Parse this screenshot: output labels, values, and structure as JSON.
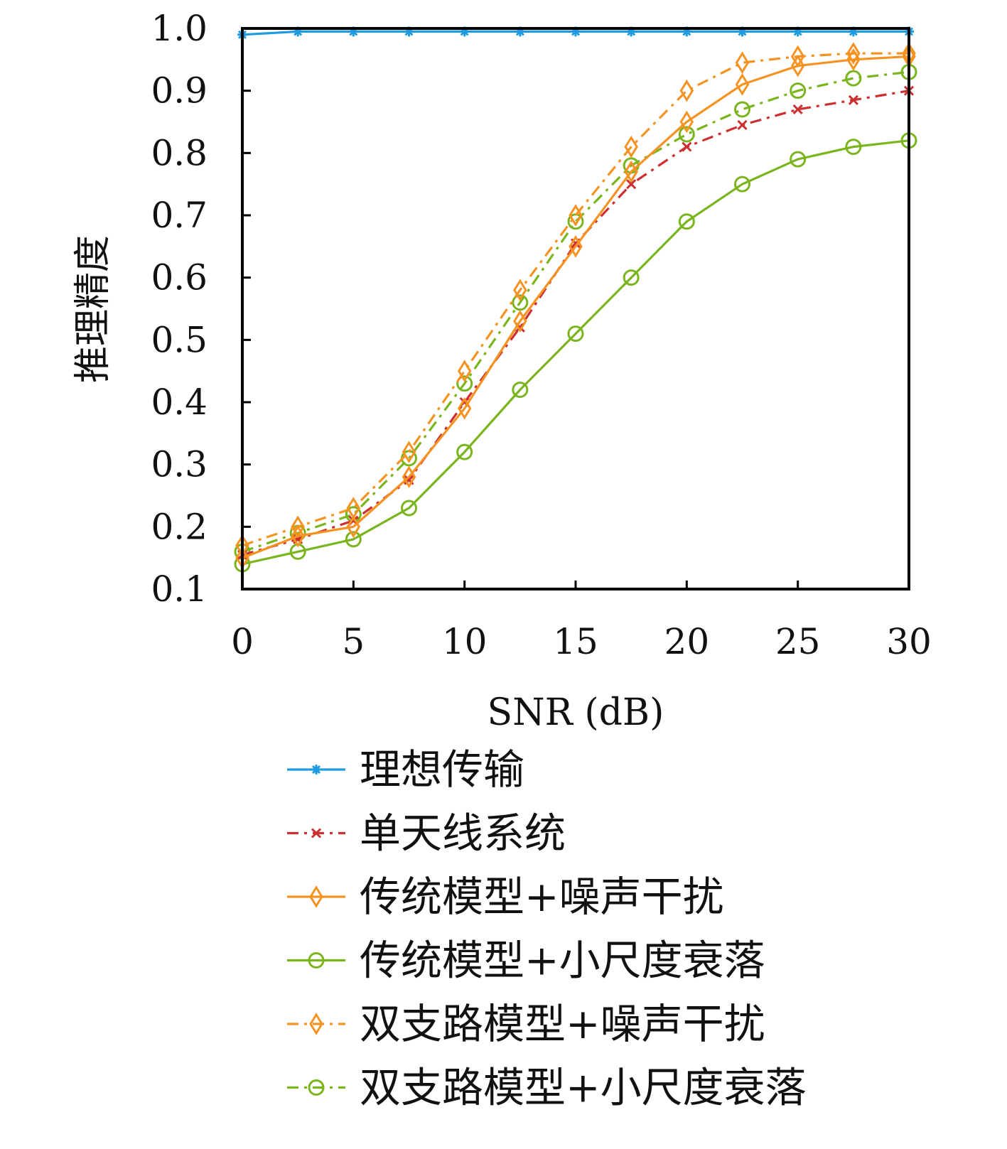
{
  "chart_data": {
    "type": "line",
    "title": "",
    "xlabel": "SNR (dB)",
    "ylabel": "推理精度",
    "xlim": [
      0,
      30
    ],
    "ylim": [
      0.1,
      1.0
    ],
    "xticks": [
      0,
      5,
      10,
      15,
      20,
      25,
      30
    ],
    "xtick_labels": [
      "0",
      "5",
      "10",
      "15",
      "20",
      "25",
      "30"
    ],
    "yticks": [
      0.1,
      0.2,
      0.3,
      0.4,
      0.5,
      0.6,
      0.7,
      0.8,
      0.9,
      1.0
    ],
    "ytick_labels": [
      "0.1",
      "0.2",
      "0.3",
      "0.4",
      "0.5",
      "0.6",
      "0.7",
      "0.8",
      "0.9",
      "1.0"
    ],
    "grid": false,
    "legend_position": "below",
    "x": [
      0,
      2.5,
      5,
      7.5,
      10,
      12.5,
      15,
      17.5,
      20,
      22.5,
      25,
      27.5,
      30
    ],
    "series": [
      {
        "name": "理想传输",
        "color": "#1f9be0",
        "line": "solid",
        "marker": "asterisk",
        "values": [
          0.99,
          0.995,
          0.995,
          0.995,
          0.995,
          0.995,
          0.995,
          0.995,
          0.995,
          0.995,
          0.995,
          0.995,
          0.995
        ]
      },
      {
        "name": "单天线系统",
        "color": "#cc3030",
        "line": "dashdot",
        "marker": "x",
        "values": [
          0.155,
          0.18,
          0.21,
          0.275,
          0.4,
          0.52,
          0.655,
          0.75,
          0.81,
          0.845,
          0.87,
          0.885,
          0.9
        ]
      },
      {
        "name": "传统模型+噪声干扰",
        "color": "#f59322",
        "line": "solid",
        "marker": "diamond",
        "values": [
          0.15,
          0.185,
          0.2,
          0.28,
          0.39,
          0.53,
          0.65,
          0.77,
          0.85,
          0.91,
          0.94,
          0.95,
          0.955
        ]
      },
      {
        "name": "传统模型+小尺度衰落",
        "color": "#7ab51d",
        "line": "solid",
        "marker": "circle",
        "values": [
          0.14,
          0.16,
          0.18,
          0.23,
          0.32,
          0.42,
          0.51,
          0.6,
          0.69,
          0.75,
          0.79,
          0.81,
          0.82
        ]
      },
      {
        "name": "双支路模型+噪声干扰",
        "color": "#f59322",
        "line": "dashdot",
        "marker": "diamond",
        "values": [
          0.17,
          0.2,
          0.23,
          0.32,
          0.45,
          0.58,
          0.7,
          0.81,
          0.9,
          0.945,
          0.955,
          0.96,
          0.96
        ]
      },
      {
        "name": "双支路模型+小尺度衰落",
        "color": "#7ab51d",
        "line": "dashdot",
        "marker": "circle",
        "values": [
          0.16,
          0.19,
          0.22,
          0.31,
          0.43,
          0.56,
          0.69,
          0.78,
          0.83,
          0.87,
          0.9,
          0.92,
          0.93
        ]
      }
    ]
  }
}
